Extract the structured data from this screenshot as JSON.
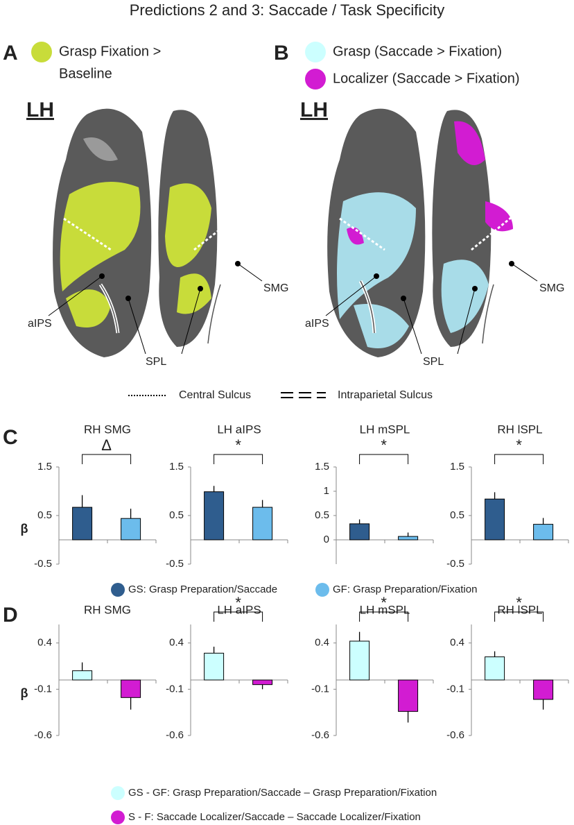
{
  "title": "Predictions 2 and 3: Saccade / Task Specificity",
  "panel_a": {
    "letter": "A",
    "legend": [
      "Grasp Fixation >",
      "Baseline"
    ],
    "hemisphere": "LH",
    "labels": [
      "aIPS",
      "SPL",
      "SMG"
    ]
  },
  "panel_b": {
    "letter": "B",
    "legend": [
      "Grasp (Saccade > Fixation)",
      "Localizer (Saccade > Fixation)"
    ],
    "hemisphere": "LH",
    "labels": [
      "aIPS",
      "SPL",
      "SMG"
    ]
  },
  "sulcus_legend": [
    "Central Sulcus",
    "Intraparietal Sulcus"
  ],
  "panel_c": {
    "letter": "C",
    "legend": [
      {
        "name": "GS: Grasp Preparation/Saccade",
        "color": "#2f5d8e"
      },
      {
        "name": "GF: Grasp Preparation/Fixation",
        "color": "#6cbcec"
      }
    ]
  },
  "panel_d": {
    "letter": "D",
    "legend": [
      {
        "name": "GS - GF: Grasp Preparation/Saccade – Grasp Preparation/Fixation",
        "color": "#ccffff"
      },
      {
        "name": "S - F: Saccade Localizer/Saccade – Saccade Localizer/Fixation",
        "color": "#d21cd2"
      }
    ]
  },
  "chart_data": [
    {
      "type": "bar",
      "title": "RH SMG",
      "ylabel": "β",
      "values": [
        0.67,
        0.44
      ],
      "errors": [
        0.25,
        0.2
      ],
      "ylim": [
        -0.5,
        1.5
      ],
      "yticks": [
        -0.5,
        0.5,
        1.5
      ],
      "annotation": "Δ"
    },
    {
      "type": "bar",
      "title": "LH aIPS",
      "values": [
        0.99,
        0.67
      ],
      "errors": [
        0.12,
        0.15
      ],
      "ylim": [
        -0.5,
        1.5
      ],
      "yticks": [
        -0.5,
        0.5,
        1.5
      ],
      "annotation": "*"
    },
    {
      "type": "bar",
      "title": "LH mSPL",
      "values": [
        0.33,
        0.07
      ],
      "errors": [
        0.09,
        0.08
      ],
      "ylim": [
        -0.5,
        1.5
      ],
      "yticks": [
        0,
        0.5,
        1,
        1.5
      ],
      "annotation": "*"
    },
    {
      "type": "bar",
      "title": "RH lSPL",
      "values": [
        0.84,
        0.32
      ],
      "errors": [
        0.14,
        0.13
      ],
      "ylim": [
        -0.5,
        1.5
      ],
      "yticks": [
        -0.5,
        0.5,
        1.5
      ],
      "annotation": "*"
    },
    {
      "type": "bar",
      "title": "RH SMG",
      "ylabel": "β",
      "values": [
        0.1,
        -0.19
      ],
      "errors": [
        0.09,
        0.13
      ],
      "ylim": [
        -0.6,
        0.6
      ],
      "yticks": [
        -0.6,
        -0.1,
        0.4
      ]
    },
    {
      "type": "bar",
      "title": "LH aIPS",
      "values": [
        0.29,
        -0.05
      ],
      "errors": [
        0.07,
        0.05
      ],
      "ylim": [
        -0.6,
        0.6
      ],
      "yticks": [
        -0.6,
        -0.1,
        0.4
      ],
      "annotation": "*"
    },
    {
      "type": "bar",
      "title": "LH mSPL",
      "values": [
        0.42,
        -0.34
      ],
      "errors": [
        0.1,
        0.12
      ],
      "ylim": [
        -0.6,
        0.6
      ],
      "yticks": [
        -0.6,
        -0.1,
        0.4
      ],
      "annotation": "*"
    },
    {
      "type": "bar",
      "title": "RH lSPL",
      "values": [
        0.25,
        -0.21
      ],
      "errors": [
        0.06,
        0.11
      ],
      "ylim": [
        -0.6,
        0.6
      ],
      "yticks": [
        -0.6,
        -0.1,
        0.4
      ],
      "annotation": "*"
    }
  ]
}
